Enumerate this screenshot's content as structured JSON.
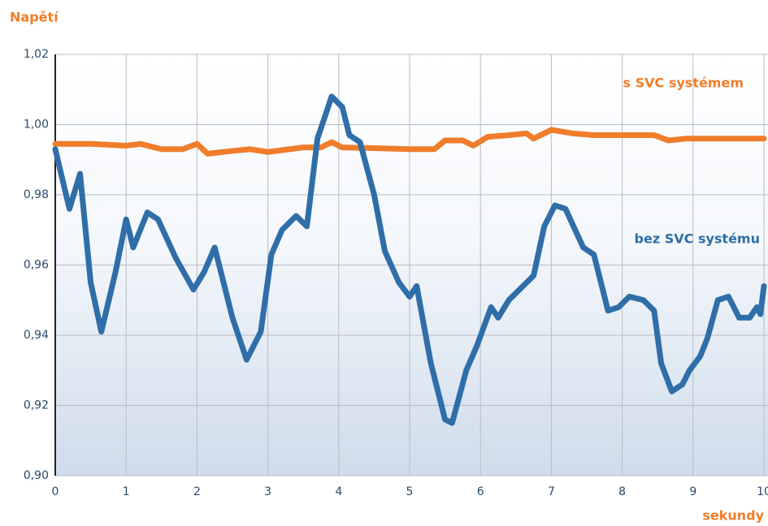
{
  "chart_data": {
    "type": "line",
    "title": "Napětí",
    "x_label": "sekundy",
    "xlim": [
      0,
      10
    ],
    "xticks": [
      0,
      1,
      2,
      3,
      4,
      5,
      6,
      7,
      8,
      9,
      10
    ],
    "ylim": [
      0.9,
      1.02
    ],
    "yticks": [
      {
        "value": 0.9,
        "label": "0,90"
      },
      {
        "value": 0.92,
        "label": "0,92"
      },
      {
        "value": 0.94,
        "label": "0,94"
      },
      {
        "value": 0.96,
        "label": "0,96"
      },
      {
        "value": 0.98,
        "label": "0,98"
      },
      {
        "value": 1.0,
        "label": "1,00"
      },
      {
        "value": 1.02,
        "label": "1,02"
      }
    ],
    "grid": true,
    "series": [
      {
        "name": "s SVC systémem",
        "color": "#f07d2a",
        "x": [
          0,
          0.5,
          1,
          1.2,
          1.5,
          1.8,
          2,
          2.15,
          2.5,
          2.75,
          3,
          3.5,
          3.75,
          3.9,
          4.05,
          4.5,
          5,
          5.35,
          5.5,
          5.75,
          5.9,
          6.1,
          6.4,
          6.65,
          6.75,
          6.9,
          7.0,
          7.3,
          7.6,
          8,
          8.45,
          8.65,
          8.9,
          9.2,
          10
        ],
        "values": [
          0.9945,
          0.9945,
          0.994,
          0.9945,
          0.993,
          0.993,
          0.9945,
          0.9917,
          0.9925,
          0.993,
          0.9922,
          0.9935,
          0.9935,
          0.995,
          0.9935,
          0.9933,
          0.993,
          0.993,
          0.9955,
          0.9955,
          0.994,
          0.9965,
          0.997,
          0.9975,
          0.996,
          0.9975,
          0.9985,
          0.9975,
          0.997,
          0.997,
          0.997,
          0.9955,
          0.996,
          0.996,
          0.996
        ]
      },
      {
        "name": "bez SVC systému",
        "color": "#2f6ea8",
        "x": [
          0,
          0.2,
          0.35,
          0.5,
          0.65,
          0.85,
          1.0,
          1.1,
          1.3,
          1.45,
          1.7,
          1.95,
          2.1,
          2.25,
          2.5,
          2.7,
          2.9,
          3.05,
          3.2,
          3.4,
          3.55,
          3.7,
          3.9,
          4.05,
          4.15,
          4.3,
          4.5,
          4.65,
          4.85,
          5.0,
          5.1,
          5.3,
          5.5,
          5.6,
          5.8,
          5.95,
          6.15,
          6.25,
          6.4,
          6.6,
          6.75,
          6.9,
          7.05,
          7.2,
          7.45,
          7.6,
          7.8,
          7.95,
          8.1,
          8.3,
          8.45,
          8.55,
          8.7,
          8.85,
          8.95,
          9.1,
          9.2,
          9.35,
          9.5,
          9.65,
          9.8,
          9.9,
          9.95,
          10
        ],
        "values": [
          0.993,
          0.976,
          0.986,
          0.955,
          0.941,
          0.958,
          0.973,
          0.965,
          0.975,
          0.973,
          0.962,
          0.953,
          0.958,
          0.965,
          0.945,
          0.933,
          0.941,
          0.963,
          0.97,
          0.974,
          0.971,
          0.996,
          1.008,
          1.005,
          0.997,
          0.995,
          0.98,
          0.964,
          0.955,
          0.951,
          0.954,
          0.932,
          0.916,
          0.915,
          0.93,
          0.937,
          0.948,
          0.945,
          0.95,
          0.954,
          0.957,
          0.971,
          0.977,
          0.976,
          0.965,
          0.963,
          0.947,
          0.948,
          0.951,
          0.95,
          0.947,
          0.932,
          0.924,
          0.926,
          0.93,
          0.934,
          0.939,
          0.95,
          0.951,
          0.945,
          0.945,
          0.948,
          0.946,
          0.954
        ]
      }
    ]
  }
}
